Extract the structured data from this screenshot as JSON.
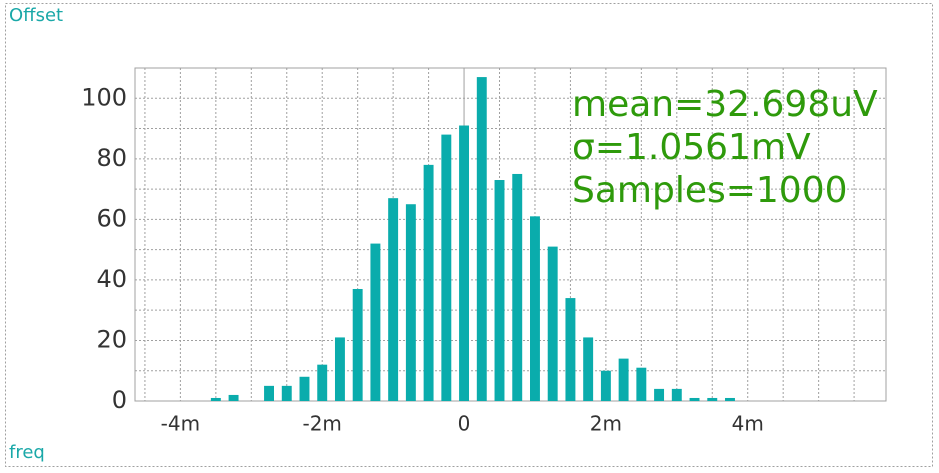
{
  "chart_data": {
    "type": "histogram",
    "title": "Offset",
    "ylabel": "freq",
    "bins": [
      -3.625,
      -3.375,
      -3.125,
      -2.875,
      -2.625,
      -2.375,
      -2.125,
      -1.875,
      -1.625,
      -1.375,
      -1.125,
      -0.875,
      -0.625,
      -0.375,
      -0.125,
      0.125,
      0.375,
      0.625,
      0.875,
      1.125,
      1.375,
      1.625,
      1.875,
      2.125,
      2.375,
      2.625,
      2.875,
      3.125,
      3.375,
      3.625,
      3.875
    ],
    "values": [
      1,
      2,
      0,
      5,
      5,
      8,
      12,
      21,
      37,
      52,
      67,
      65,
      78,
      88,
      91,
      107,
      73,
      75,
      61,
      51,
      34,
      21,
      10,
      14,
      11,
      4,
      4,
      1,
      1,
      1
    ],
    "color": "#0aacac",
    "xlim": [
      -4.64,
      5.95
    ],
    "xticks": [
      {
        "value": -4,
        "label": "-4m"
      },
      {
        "value": -2,
        "label": "-2m"
      },
      0,
      {
        "value": 2,
        "label": "2m"
      },
      {
        "value": 4,
        "label": "4m"
      }
    ],
    "xminorticks": [
      -4.5,
      -3.5,
      -3,
      -2.5,
      -1.5,
      -1,
      -0.5,
      0.5,
      1,
      1.5,
      2.5,
      3,
      3.5,
      4.5,
      5,
      5.5
    ],
    "ylim": [
      0,
      110
    ],
    "yticks": [
      0,
      20,
      40,
      60,
      80,
      100
    ],
    "yminorticks": [
      10,
      30,
      50,
      70,
      90,
      110
    ],
    "grid": true,
    "annotations": [
      "mean=32.698uV",
      "σ=1.0561mV",
      "Samples=1000"
    ],
    "annotation_color": "#2e9a0b"
  }
}
